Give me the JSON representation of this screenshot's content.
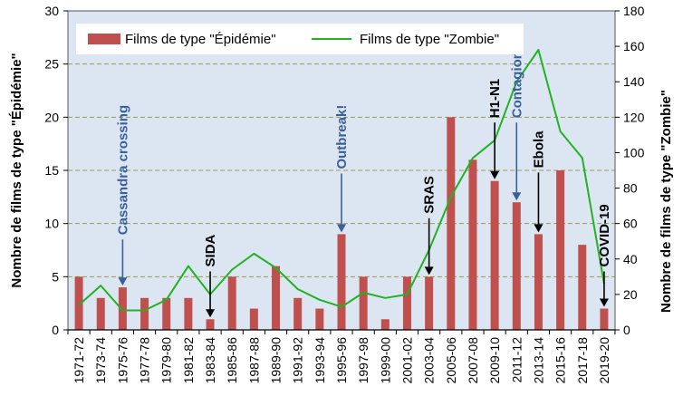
{
  "chart_data": {
    "type": "bar",
    "categories": [
      "1971-72",
      "1973-74",
      "1975-76",
      "1977-78",
      "1979-80",
      "1981-82",
      "1983-84",
      "1985-86",
      "1987-88",
      "1989-90",
      "1991-92",
      "1993-94",
      "1995-96",
      "1997-98",
      "1999-00",
      "2001-02",
      "2003-04",
      "2005-06",
      "2007-08",
      "2009-10",
      "2011-12",
      "2013-14",
      "2015-16",
      "2017-18",
      "2019-20"
    ],
    "series": [
      {
        "name": "Films de type \"Épidémie\"",
        "type": "bar",
        "axis": "left",
        "color": "#c0504d",
        "values": [
          5,
          3,
          4,
          3,
          3,
          3,
          1,
          5,
          2,
          6,
          3,
          2,
          9,
          5,
          1,
          5,
          5,
          20,
          16,
          14,
          12,
          9,
          15,
          8,
          2
        ]
      },
      {
        "name": "Films de type \"Zombie\"",
        "type": "line",
        "axis": "right",
        "color": "#22b222",
        "values": [
          14,
          25,
          11,
          11,
          17,
          36,
          20,
          34,
          43,
          35,
          23,
          17,
          13,
          21,
          18,
          20,
          45,
          75,
          97,
          107,
          140,
          158,
          112,
          97,
          26
        ]
      }
    ],
    "ylabel": "Nombre de films de type \"Épidémie\"",
    "y2label": "Nombre de films de type \"Zombie\"",
    "ylim": [
      0,
      30
    ],
    "y2lim": [
      0,
      180
    ],
    "yticks": [
      0,
      5,
      10,
      15,
      20,
      25,
      30
    ],
    "y2ticks": [
      0,
      20,
      40,
      60,
      80,
      100,
      120,
      140,
      160,
      180
    ],
    "grid": true,
    "legend_position": "top",
    "background": "#dce6f2",
    "annotations": [
      {
        "text": "Cassandra crossing",
        "category": "1975-76",
        "color": "#3a5f9a",
        "arrow_top_value": 8.5
      },
      {
        "text": "SIDA",
        "category": "1983-84",
        "color": "#000000",
        "arrow_top_value": 5.5
      },
      {
        "text": "Outbreak!",
        "category": "1995-96",
        "color": "#3a5f9a",
        "arrow_top_value": 14.7
      },
      {
        "text": "SRAS",
        "category": "2003-04",
        "color": "#000000",
        "arrow_top_value": 10.5
      },
      {
        "text": "H1-N1",
        "category": "2009-10",
        "color": "#000000",
        "arrow_top_value": 19.5
      },
      {
        "text": "Contagion",
        "category": "2011-12",
        "color": "#3a5f9a",
        "arrow_top_value": 19.5
      },
      {
        "text": "Ebola",
        "category": "2013-14",
        "color": "#000000",
        "arrow_top_value": 14.8
      },
      {
        "text": "COVID-19",
        "category": "2019-20",
        "color": "#000000",
        "arrow_top_value": 5.5
      }
    ]
  }
}
